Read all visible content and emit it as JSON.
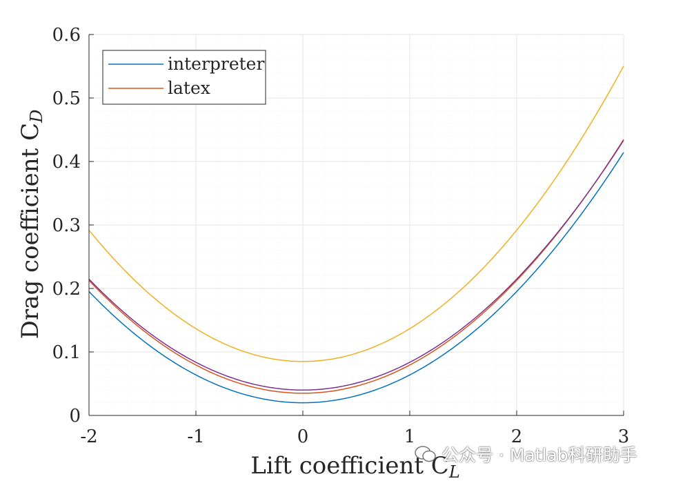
{
  "chart_data": {
    "type": "line",
    "xlabel": "Lift coefficient C",
    "xlabel_sub": "L",
    "ylabel": "Drag coefficient C",
    "ylabel_sub": "D",
    "xlim": [
      -2,
      3
    ],
    "ylim": [
      0,
      0.6
    ],
    "grid": true,
    "minor_grid": true,
    "x_ticks": [
      -2,
      -1,
      0,
      1,
      2,
      3
    ],
    "x_tick_labels": [
      "-2",
      "-1",
      "0",
      "1",
      "2",
      "3"
    ],
    "y_ticks": [
      0,
      0.1,
      0.2,
      0.3,
      0.4,
      0.5,
      0.6
    ],
    "y_tick_labels": [
      "0",
      "0.1",
      "0.2",
      "0.3",
      "0.4",
      "0.5",
      "0.6"
    ],
    "legend_position": "top-left",
    "series": [
      {
        "name": "interpreter",
        "color": "#0072BD",
        "cd0": 0.02,
        "k": 0.0438,
        "in_legend": true
      },
      {
        "name": "latex",
        "color": "#D95319",
        "cd0": 0.035,
        "k": 0.0444,
        "in_legend": true
      },
      {
        "name": "",
        "color": "#EDB120",
        "cd0": 0.085,
        "k": 0.0517,
        "in_legend": false
      },
      {
        "name": "",
        "color": "#7E2F8E",
        "cd0": 0.04,
        "k": 0.0437,
        "in_legend": false
      }
    ]
  },
  "watermark": {
    "text": "公众号 · Matlab科研助手",
    "icon": "wechat-icon"
  }
}
